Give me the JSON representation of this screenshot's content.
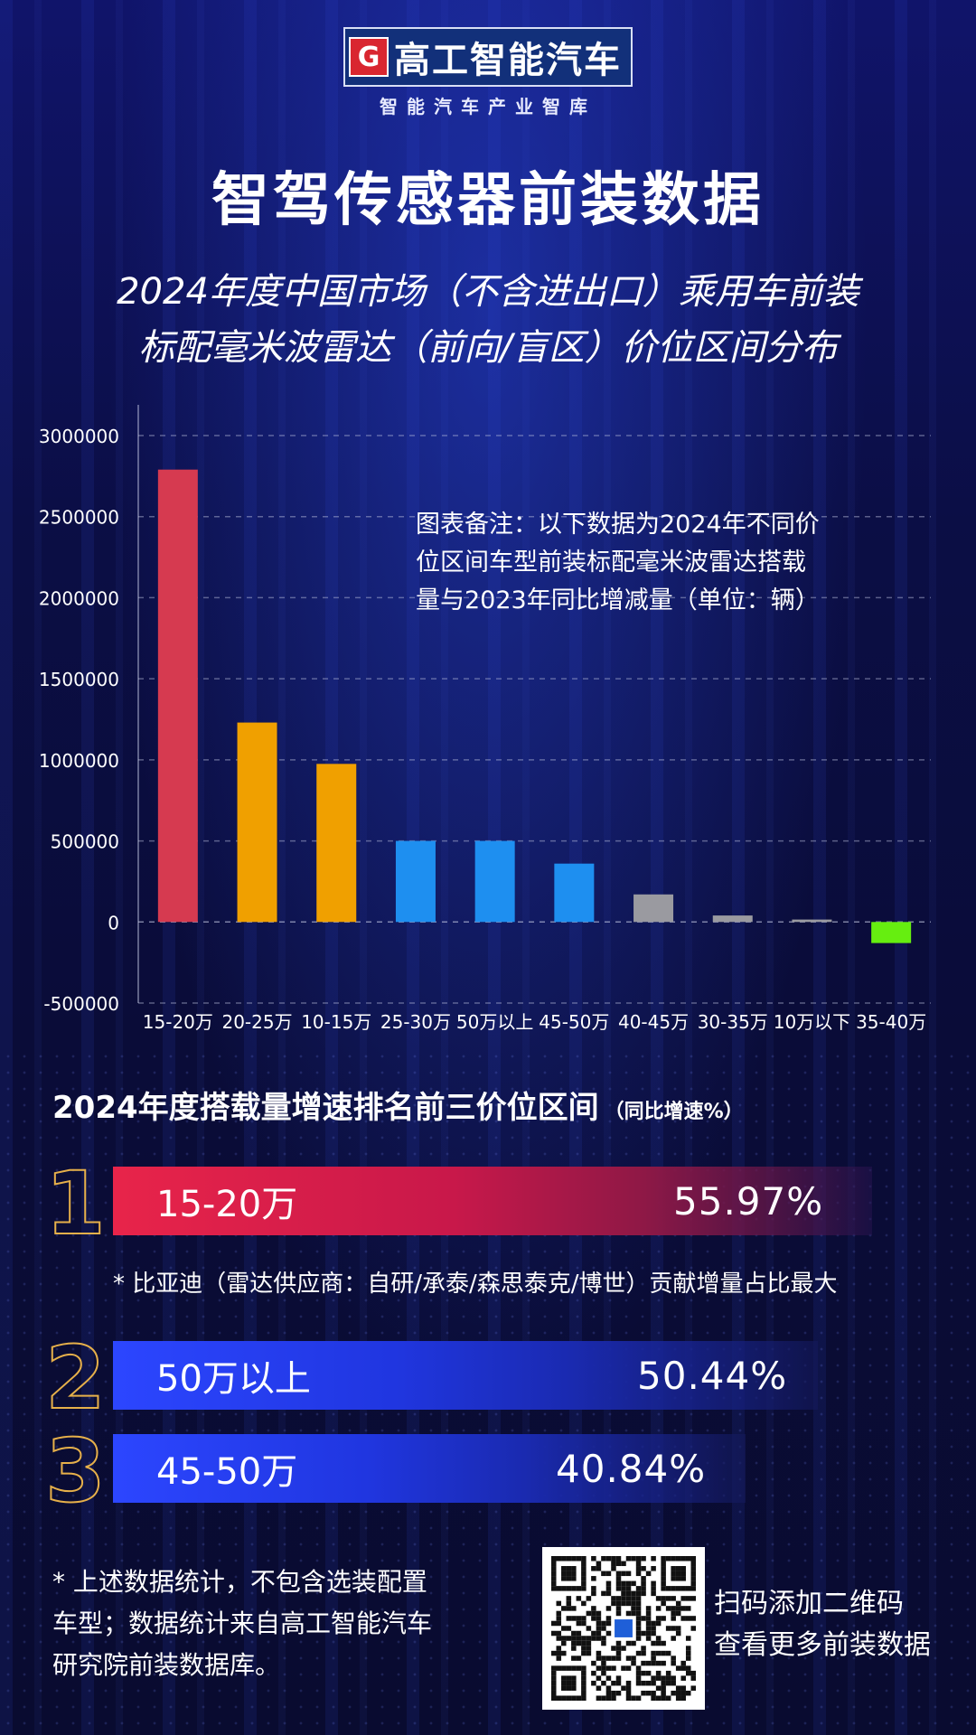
{
  "brand": {
    "mark": "G",
    "name": "高工智能汽车",
    "tagline": "智能汽车产业智库"
  },
  "title": "智驾传感器前装数据",
  "subtitle_lines": [
    "2024年度中国市场（不含进出口）乘用车前装",
    "标配毫米波雷达（前向/盲区）价位区间分布"
  ],
  "chart_note_lines": [
    "图表备注：以下数据为2024年不同价",
    "位区间车型前装标配毫米波雷达搭载",
    "量与2023年同比增减量（单位：辆）"
  ],
  "chart_data": {
    "type": "bar",
    "categories": [
      "15-20万",
      "20-25万",
      "10-15万",
      "25-30万",
      "50万以上",
      "45-50万",
      "40-45万",
      "30-35万",
      "10万以下",
      "35-40万"
    ],
    "values": [
      2790000,
      1230000,
      975000,
      500000,
      500000,
      360000,
      170000,
      40000,
      15000,
      -130000
    ],
    "bar_colors": [
      "#d63a50",
      "#f0a000",
      "#f0a000",
      "#1e8ff0",
      "#1e8ff0",
      "#1e8ff0",
      "#9a9aa0",
      "#9a9aa0",
      "#9a9aa0",
      "#66ee10"
    ],
    "ylim": [
      -500000,
      3000000
    ],
    "yticks": [
      "3000000",
      "2500000",
      "2000000",
      "1500000",
      "1000000",
      "500000",
      "0",
      "-500000"
    ],
    "ytick_values": [
      3000000,
      2500000,
      2000000,
      1500000,
      1000000,
      500000,
      0,
      -500000
    ],
    "grid": "dashed horizontal",
    "xlabel": "",
    "ylabel": ""
  },
  "ranking": {
    "title": "2024年度搭载量增速排名前三价位区间",
    "title_suffix": "（同比增速%）",
    "items": [
      {
        "rank": "1",
        "label": "15-20万",
        "value": "55.97%"
      },
      {
        "rank": "2",
        "label": "50万以上",
        "value": "50.44%"
      },
      {
        "rank": "3",
        "label": "45-50万",
        "value": "40.84%"
      }
    ],
    "note": "* 比亚迪（雷达供应商：自研/承泰/森思泰克/博世）贡献增量占比最大"
  },
  "footnote_lines": [
    "* 上述数据统计，不包含选装配置",
    "车型；数据统计来自高工智能汽车",
    "研究院前装数据库。"
  ],
  "qr_caption_lines": [
    "扫码添加二维码",
    "查看更多前装数据"
  ]
}
